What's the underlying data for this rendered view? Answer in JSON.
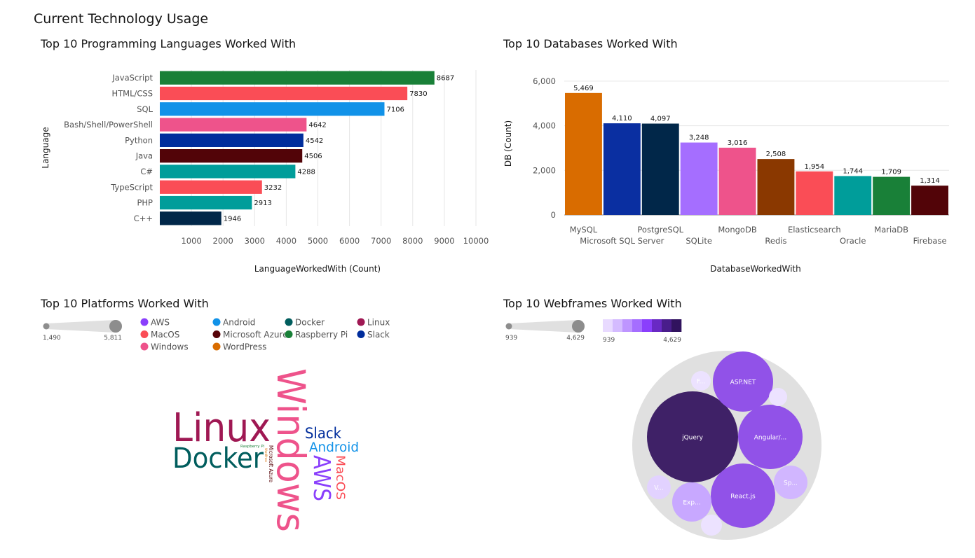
{
  "page": {
    "title": "Current Technology Usage"
  },
  "chart_data": [
    {
      "type": "bar",
      "orientation": "horizontal",
      "title": "Top 10 Programming Languages Worked With",
      "xlabel": "LanguageWorkedWith (Count)",
      "ylabel": "Language",
      "categories": [
        "JavaScript",
        "HTML/CSS",
        "SQL",
        "Bash/Shell/PowerShell",
        "Python",
        "Java",
        "C#",
        "TypeScript",
        "PHP",
        "C++"
      ],
      "values": [
        8687,
        7830,
        7106,
        4642,
        4542,
        4506,
        4288,
        3232,
        2913,
        1946
      ],
      "colors": [
        "#198038",
        "#fa4d56",
        "#1192e8",
        "#ee538b",
        "#002d9c",
        "#520408",
        "#009d9a",
        "#fa4d56",
        "#009d9a",
        "#012749"
      ],
      "xlim": [
        0,
        10000
      ],
      "xticks": [
        1000,
        2000,
        3000,
        4000,
        5000,
        6000,
        7000,
        8000,
        9000,
        10000
      ],
      "xtick_labels": [
        "1000",
        "2000",
        "3000",
        "4000",
        "5000",
        "6000",
        "7000",
        "8000",
        "9000",
        "10000"
      ],
      "value_labels": [
        "8687",
        "7830",
        "7106",
        "4642",
        "4542",
        "4506",
        "4288",
        "3232",
        "2913",
        "1946"
      ],
      "grid": true
    },
    {
      "type": "bar",
      "title": "Top 10 Databases Worked With",
      "xlabel": "DatabaseWorkedWith",
      "ylabel": "DB (Count)",
      "categories": [
        "MySQL",
        "Microsoft SQL Server",
        "PostgreSQL",
        "SQLite",
        "MongoDB",
        "Redis",
        "Elasticsearch",
        "Oracle",
        "MariaDB",
        "Firebase"
      ],
      "values": [
        5469,
        4110,
        4097,
        3248,
        3016,
        2508,
        1954,
        1744,
        1709,
        1314
      ],
      "value_labels": [
        "5,469",
        "4,110",
        "4,097",
        "3,248",
        "3,016",
        "2,508",
        "1,954",
        "1,744",
        "1,709",
        "1,314"
      ],
      "colors": [
        "#d96c00",
        "#0a2fa1",
        "#012749",
        "#a56eff",
        "#ee538b",
        "#8a3800",
        "#fa4d56",
        "#009d9a",
        "#198038",
        "#520408"
      ],
      "ylim": [
        0,
        6500
      ],
      "yticks": [
        0,
        2000,
        4000,
        6000
      ],
      "ytick_labels": [
        "0",
        "2,000",
        "4,000",
        "6,000"
      ],
      "grid": true
    },
    {
      "type": "wordcloud",
      "title": "Top 10 Platforms Worked With",
      "size_legend": {
        "min_label": "1,490",
        "max_label": "5,811"
      },
      "legend": [
        {
          "name": "AWS",
          "color": "#8a3ffc"
        },
        {
          "name": "Android",
          "color": "#1192e8"
        },
        {
          "name": "Docker",
          "color": "#005d5d"
        },
        {
          "name": "Linux",
          "color": "#9f1853"
        },
        {
          "name": "MacOS",
          "color": "#fa4d56"
        },
        {
          "name": "Microsoft Azure",
          "color": "#570408"
        },
        {
          "name": "Raspberry Pi",
          "color": "#198038"
        },
        {
          "name": "Slack",
          "color": "#002d9c"
        },
        {
          "name": "Windows",
          "color": "#ee538b"
        },
        {
          "name": "WordPress",
          "color": "#d96c00"
        }
      ],
      "words": [
        {
          "text": "Windows",
          "color": "#ee538b"
        },
        {
          "text": "Linux",
          "color": "#9f1853"
        },
        {
          "text": "Docker",
          "color": "#005d5d"
        },
        {
          "text": "Slack",
          "color": "#002d9c"
        },
        {
          "text": "Android",
          "color": "#1192e8"
        },
        {
          "text": "AWS",
          "color": "#8a3ffc"
        },
        {
          "text": "MacOS",
          "color": "#fa4d56"
        },
        {
          "text": "Microsoft Azure",
          "color": "#570408"
        },
        {
          "text": "Raspberry Pi",
          "color": "#198038"
        },
        {
          "text": "WordPress",
          "color": "#d96c00"
        }
      ]
    },
    {
      "type": "bubble",
      "title": "Top 10 Webframes Worked With",
      "size_legend": {
        "min_label": "939",
        "max_label": "4,629"
      },
      "color_legend": {
        "min_label": "939",
        "max_label": "4,629",
        "colors": [
          "#e8daff",
          "#d4bbff",
          "#be95ff",
          "#a56eff",
          "#8a3ffc",
          "#6929c4",
          "#491d8b",
          "#31135e"
        ]
      },
      "bubbles": [
        {
          "label": "jQuery",
          "color": "#3f2167"
        },
        {
          "label": "ASP.NET",
          "color": "#9152e8"
        },
        {
          "label": "Angular/...",
          "color": "#9152e8"
        },
        {
          "label": "React.js",
          "color": "#9152e8"
        },
        {
          "label": "Exp...",
          "color": "#c8a8ff"
        },
        {
          "label": "Sp...",
          "color": "#d1b6ff"
        },
        {
          "label": "V...",
          "color": "#e2d2ff"
        },
        {
          "label": "F...",
          "color": "#ece2ff"
        },
        {
          "label": "",
          "color": "#ece2ff"
        },
        {
          "label": "",
          "color": "#ece2ff"
        }
      ]
    }
  ]
}
